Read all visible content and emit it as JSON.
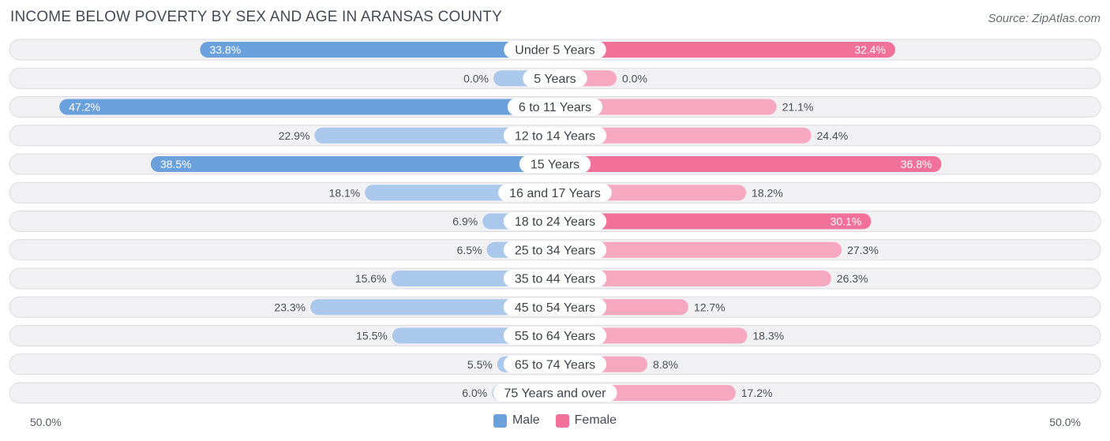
{
  "title": "INCOME BELOW POVERTY BY SEX AND AGE IN ARANSAS COUNTY",
  "source": "Source: ZipAtlas.com",
  "axis": {
    "left_label": "50.0%",
    "right_label": "50.0%"
  },
  "legend": {
    "male": "Male",
    "female": "Female"
  },
  "colors": {
    "male_dark": "#6aa1dd",
    "male_light": "#a9c8ec",
    "female_dark": "#f2719a",
    "female_light": "#f7a8c1",
    "track": "#f1f1f3",
    "track_border": "#dcdce0"
  },
  "chart_data": {
    "type": "bar",
    "orientation": "horizontal-diverging",
    "title": "INCOME BELOW POVERTY BY SEX AND AGE IN ARANSAS COUNTY",
    "xlim": [
      -50,
      50
    ],
    "unit": "%",
    "categories": [
      "Under 5 Years",
      "5 Years",
      "6 to 11 Years",
      "12 to 14 Years",
      "15 Years",
      "16 and 17 Years",
      "18 to 24 Years",
      "25 to 34 Years",
      "35 to 44 Years",
      "45 to 54 Years",
      "55 to 64 Years",
      "65 to 74 Years",
      "75 Years and over"
    ],
    "series": [
      {
        "name": "Male",
        "values": [
          33.8,
          0.0,
          47.2,
          22.9,
          38.5,
          18.1,
          6.9,
          6.5,
          15.6,
          23.3,
          15.5,
          5.5,
          6.0
        ],
        "labels": [
          "33.8%",
          "0.0%",
          "47.2%",
          "22.9%",
          "38.5%",
          "18.1%",
          "6.9%",
          "6.5%",
          "15.6%",
          "23.3%",
          "15.5%",
          "5.5%",
          "6.0%"
        ]
      },
      {
        "name": "Female",
        "values": [
          32.4,
          0.0,
          21.1,
          24.4,
          36.8,
          18.2,
          30.1,
          27.3,
          26.3,
          12.7,
          18.3,
          8.8,
          17.2
        ],
        "labels": [
          "32.4%",
          "0.0%",
          "21.1%",
          "24.4%",
          "36.8%",
          "18.2%",
          "30.1%",
          "27.3%",
          "26.3%",
          "12.7%",
          "18.3%",
          "8.8%",
          "17.2%"
        ]
      }
    ]
  }
}
